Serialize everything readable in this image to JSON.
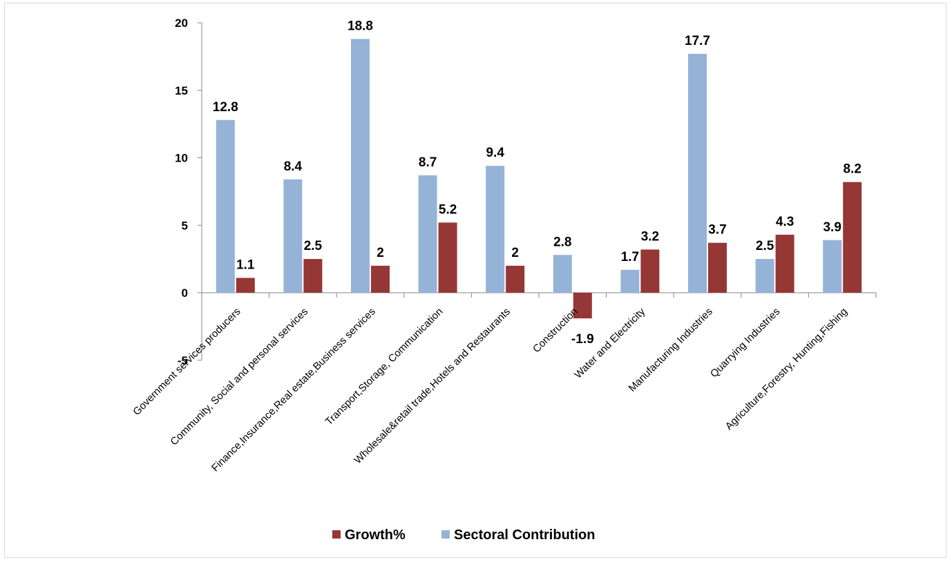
{
  "chart_data": {
    "type": "bar",
    "categories": [
      "Government services producers",
      "Community, Social and personal services",
      "Finance,Insurance,Real estate,Business services",
      "Transport,Storage, Communication",
      "Wholesale&retail trade,Hotels and Restaurants",
      "Construction",
      "Water and Electricity",
      "Manufacturing Industries",
      "Quarrying Industries",
      "Agriculture,Forestry, Hunting,Fishing"
    ],
    "series": [
      {
        "name": "Sectoral Contribution",
        "color": "#95b3d7",
        "values": [
          12.8,
          8.4,
          18.8,
          8.7,
          9.4,
          2.8,
          1.7,
          17.7,
          2.5,
          3.9
        ],
        "labels": [
          "12.8",
          "8.4",
          "18.8",
          "8.7",
          "9.4",
          "2.8",
          "1.7",
          "17.7",
          "2.5",
          "3.9"
        ]
      },
      {
        "name": "Growth%",
        "color": "#953735",
        "values": [
          1.1,
          2.5,
          2,
          5.2,
          2,
          -1.9,
          3.2,
          3.7,
          4.3,
          8.2
        ],
        "labels": [
          "1.1",
          "2.5",
          "2",
          "5.2",
          "2",
          "-1.9",
          "3.2",
          "3.7",
          "4.3",
          "8.2"
        ]
      }
    ],
    "ylim": [
      -5,
      20
    ],
    "yticks": [
      -5,
      0,
      5,
      10,
      15,
      20
    ],
    "yticklabels": [
      "-5",
      "0",
      "5",
      "10",
      "15",
      "20"
    ],
    "legend_order": [
      "Growth%",
      "Sectoral Contribution"
    ],
    "legend_position": "bottom",
    "grid": false
  }
}
